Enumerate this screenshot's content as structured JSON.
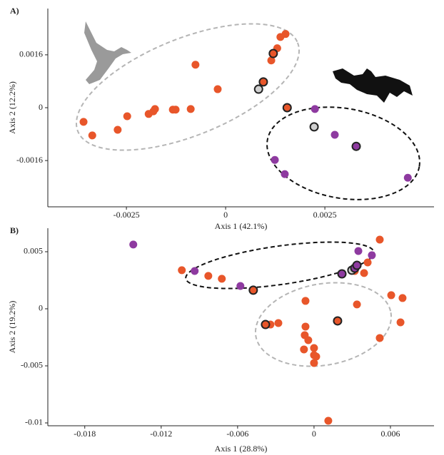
{
  "chart_data": [
    {
      "type": "scatter",
      "title": "A)",
      "xlabel": "Axis 1 (42.1%)",
      "ylabel": "Axis 2 (12.2%)",
      "xlim": [
        -0.00448,
        0.00525
      ],
      "ylim": [
        -0.003,
        0.003
      ],
      "xticks": [
        -0.0025,
        0,
        0.0025
      ],
      "yticks": [
        -0.0016,
        0,
        0.0016
      ],
      "series": [
        {
          "color": "#e8562a",
          "x": [
            -0.00358,
            -0.00336,
            -0.00272,
            -0.00248,
            -0.00194,
            -0.00182,
            -0.00178,
            -0.00133,
            -0.00126,
            -0.00088,
            -0.00076,
            -0.0002,
            0.00115,
            0.0013,
            0.00138,
            0.00151
          ],
          "values": [
            -0.00043,
            -0.00084,
            -0.00067,
            -0.00026,
            -0.00019,
            -0.00011,
            -4e-05,
            -6e-05,
            -6e-05,
            -4e-05,
            0.0013,
            0.00056,
            0.00143,
            0.0018,
            0.00214,
            0.00223
          ]
        },
        {
          "color": "#e8562a",
          "edgecolor": "#222",
          "x": [
            0.0012,
            0.00095,
            0.00155
          ],
          "values": [
            0.00164,
            0.00078,
            0
          ]
        },
        {
          "color": "#d0d0d0",
          "edgecolor": "#222",
          "x": [
            0.00083,
            0.00223
          ],
          "values": [
            0.00056,
            -0.00058
          ]
        },
        {
          "color": "#8e3aa0",
          "x": [
            0.00225,
            0.00275,
            0.00124,
            0.00149,
            0.00459
          ],
          "values": [
            -4e-05,
            -0.00082,
            -0.00158,
            -0.00201,
            -0.00212
          ]
        },
        {
          "color": "#8e3aa0",
          "edgecolor": "#222",
          "x": [
            0.00329
          ],
          "values": [
            -0.00117
          ]
        }
      ]
    },
    {
      "type": "scatter",
      "title": "B)",
      "xlabel": "Axis 1 (28.8%)",
      "ylabel": "Axis 2 (19.2%)",
      "xlim": [
        -0.0209,
        0.00942
      ],
      "ylim": [
        -0.01025,
        0.00706
      ],
      "xticks": [
        -0.018,
        -0.012,
        -0.006,
        0,
        0.006
      ],
      "yticks": [
        -0.01,
        -0.005,
        0,
        0.005
      ],
      "series": [
        {
          "color": "#e8562a",
          "x": [
            -0.01038,
            -0.0083,
            -0.00724,
            -0.00342,
            -0.0028,
            -0.00067,
            -0.00067,
            -0.00073,
            -0.00045,
            -0.00079,
            0,
            0,
            0.00017,
            0,
            0.0032,
            0.00393,
            0.00421,
            0.00516,
            0.00337,
            0.00606,
            0.00695,
            0.00679,
            0.00516,
            0.00112
          ],
          "values": [
            0.00338,
            0.00288,
            0.00263,
            -0.00138,
            -0.00125,
            0.00069,
            -0.00156,
            -0.00231,
            -0.00275,
            -0.00356,
            -0.00344,
            -0.00406,
            -0.00419,
            -0.00475,
            0.00331,
            0.00313,
            0.00406,
            0.00606,
            0.00038,
            0.00119,
            0.00094,
            -0.00119,
            -0.00256,
            -0.00981
          ]
        },
        {
          "color": "#e8562a",
          "edgecolor": "#222",
          "x": [
            -0.00477,
            -0.00381,
            0.00185
          ],
          "values": [
            0.00163,
            -0.00138,
            -0.00106
          ]
        },
        {
          "color": "#d0d0d0",
          "edgecolor": "#222",
          "x": [
            0.00297
          ],
          "values": [
            0.00338
          ]
        },
        {
          "color": "#8e3aa0",
          "x": [
            -0.01419,
            -0.00937,
            -0.00578,
            0.00348,
            0.00454
          ],
          "values": [
            0.00563,
            0.00331,
            0.002,
            0.00506,
            0.00469
          ]
        },
        {
          "color": "#8e3aa0",
          "edgecolor": "#222",
          "x": [
            0.00219,
            0.0032,
            0.00337
          ],
          "values": [
            0.00306,
            0.00356,
            0.00381
          ]
        }
      ]
    }
  ]
}
